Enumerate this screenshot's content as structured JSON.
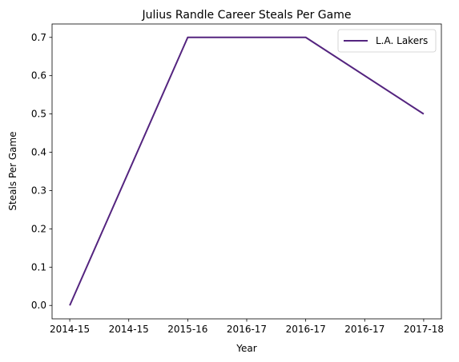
{
  "chart_data": {
    "type": "line",
    "title": "Julius Randle Career Steals Per Game",
    "xlabel": "Year",
    "ylabel": "Steals Per Game",
    "x_tick_labels": [
      "2014-15",
      "2014-15",
      "2015-16",
      "2016-17",
      "2016-17",
      "2016-17",
      "2017-18"
    ],
    "x": [
      0,
      1,
      2,
      3
    ],
    "x_labels": [
      "2014-15",
      "2015-16",
      "2016-17",
      "2017-18"
    ],
    "ylim": [
      -0.035,
      0.735
    ],
    "y_ticks": [
      0.0,
      0.1,
      0.2,
      0.3,
      0.4,
      0.5,
      0.6,
      0.7
    ],
    "y_tick_labels": [
      "0.0",
      "0.1",
      "0.2",
      "0.3",
      "0.4",
      "0.5",
      "0.6",
      "0.7"
    ],
    "series": [
      {
        "name": "L.A. Lakers",
        "values": [
          0.0,
          0.7,
          0.7,
          0.5
        ],
        "color": "#54247f"
      }
    ],
    "legend_position": "upper right",
    "grid": false
  }
}
